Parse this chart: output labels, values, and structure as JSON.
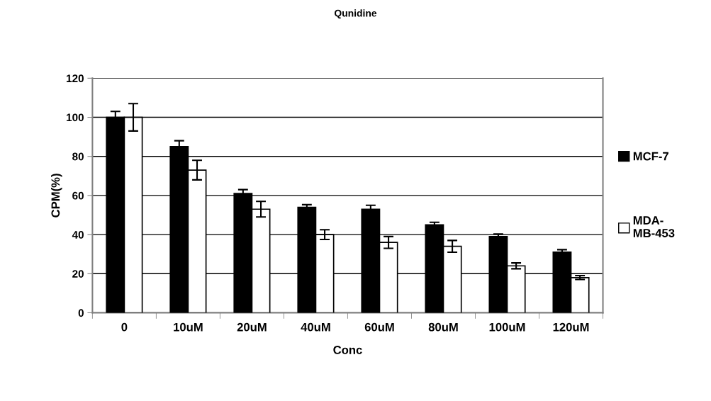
{
  "chart_data": {
    "type": "bar",
    "title": "Qunidine",
    "xlabel": "Conc",
    "ylabel": "CPM(%)",
    "categories": [
      "0",
      "10uM",
      "20uM",
      "40uM",
      "60uM",
      "80uM",
      "100uM",
      "120uM"
    ],
    "series": [
      {
        "name": "MCF-7",
        "color": "#000000",
        "values": [
          100,
          85,
          61,
          54,
          53,
          45,
          39,
          31
        ],
        "errors": [
          3,
          3,
          2,
          1.3,
          2,
          1.3,
          1.3,
          1.3
        ]
      },
      {
        "name": "MDA-\nMB-453",
        "color": "#ffffff",
        "values": [
          100,
          73,
          53,
          40,
          36,
          34,
          24,
          18
        ],
        "errors": [
          7,
          5,
          4,
          2.5,
          3,
          3,
          1.5,
          1
        ]
      }
    ],
    "ylim": [
      0,
      120
    ],
    "yticks": [
      0,
      20,
      40,
      60,
      80,
      100,
      120
    ],
    "grid": "y",
    "legend": "right"
  }
}
